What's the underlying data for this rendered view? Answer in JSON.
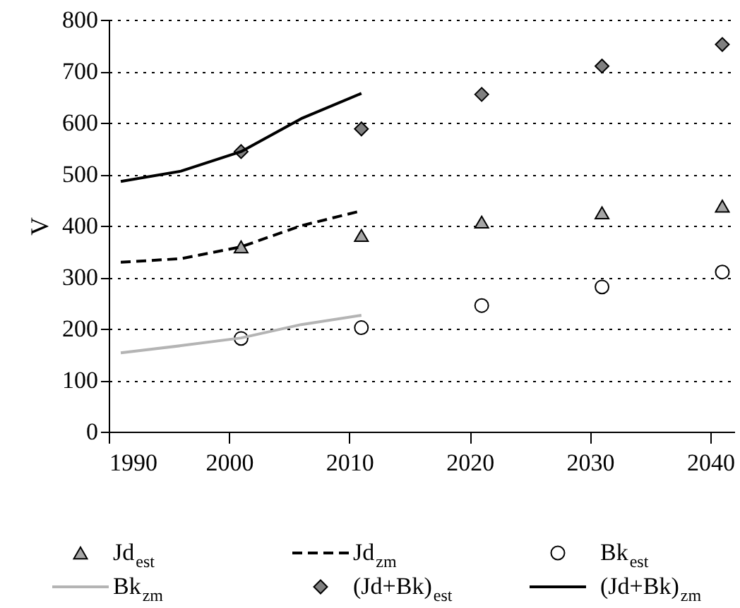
{
  "chart_data": {
    "type": "scatter",
    "ylabel": "V",
    "xlim": [
      1990,
      2042
    ],
    "xticks": [
      1990,
      2000,
      2010,
      2020,
      2030,
      2040
    ],
    "ylim": [
      0,
      800
    ],
    "yticks": [
      0,
      100,
      200,
      300,
      400,
      500,
      600,
      700,
      800
    ],
    "grid": "y",
    "legend": "bottom",
    "series": [
      {
        "name": "Jd$_{est}$",
        "marker": "triangle",
        "color": "#a6a6a6",
        "x": [
          2001,
          2011,
          2021,
          2031,
          2041
        ],
        "values": [
          359,
          381,
          407,
          425,
          438
        ]
      },
      {
        "name": "Jd$_{zm}$",
        "type": "line",
        "line_style": "dashed",
        "marker": "none",
        "color": "#000000",
        "x": [
          1991,
          1996,
          2001,
          2006,
          2011
        ],
        "values": [
          329,
          336,
          359,
          400,
          429
        ]
      },
      {
        "name": "Bk$_{est}$",
        "marker": "circle",
        "color": "#ffffff",
        "x": [
          2001,
          2011,
          2021,
          2031,
          2041
        ],
        "values": [
          181,
          202,
          245,
          281,
          310
        ]
      },
      {
        "name": "Bk$_{zm}$",
        "type": "line",
        "line_style": "solid",
        "marker": "none",
        "color": "#b4b4b4",
        "x": [
          1991,
          1996,
          2001,
          2006,
          2011
        ],
        "values": [
          153,
          167,
          182,
          208,
          226
        ]
      },
      {
        "name": "(Jd+Bk)$_{est}$",
        "marker": "diamond",
        "color": "#808080",
        "x": [
          2001,
          2011,
          2021,
          2031,
          2041
        ],
        "values": [
          544,
          588,
          655,
          710,
          752
        ]
      },
      {
        "name": "(Jd+Bk)$_{zm}$",
        "type": "line",
        "line_style": "solid",
        "marker": "none",
        "color": "#000000",
        "x": [
          1991,
          1996,
          2001,
          2006,
          2011
        ],
        "values": [
          486,
          506,
          544,
          608,
          657
        ]
      }
    ]
  }
}
